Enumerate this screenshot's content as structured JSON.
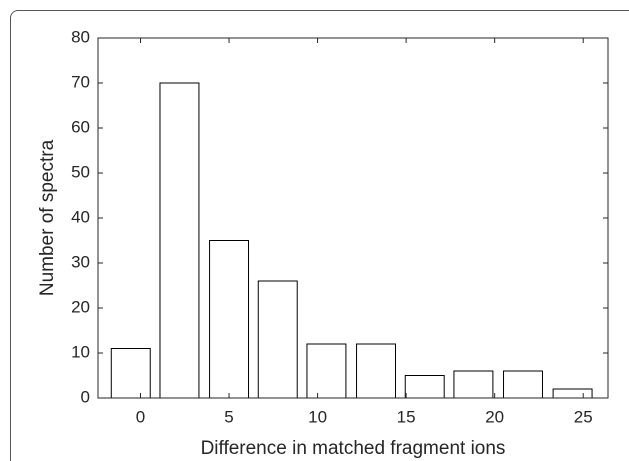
{
  "chart_data": {
    "type": "bar",
    "x_label": "Difference in matched fragment ions",
    "y_label": "Number of spectra",
    "x": [
      -0.55,
      2.2,
      5.0,
      7.75,
      10.5,
      13.3,
      16.05,
      18.8,
      21.6,
      24.4
    ],
    "values": [
      11,
      70,
      35,
      26,
      12,
      12,
      5,
      6,
      6,
      2
    ],
    "color": "#ffffff",
    "edge_color": "#000000",
    "xlim": [
      -2.4,
      26.4
    ],
    "xticks": [
      0,
      5,
      10,
      15,
      20,
      25
    ],
    "ylim": [
      0,
      80
    ],
    "yticks": [
      0,
      10,
      20,
      30,
      40,
      50,
      60,
      70,
      80
    ],
    "grid": false
  }
}
